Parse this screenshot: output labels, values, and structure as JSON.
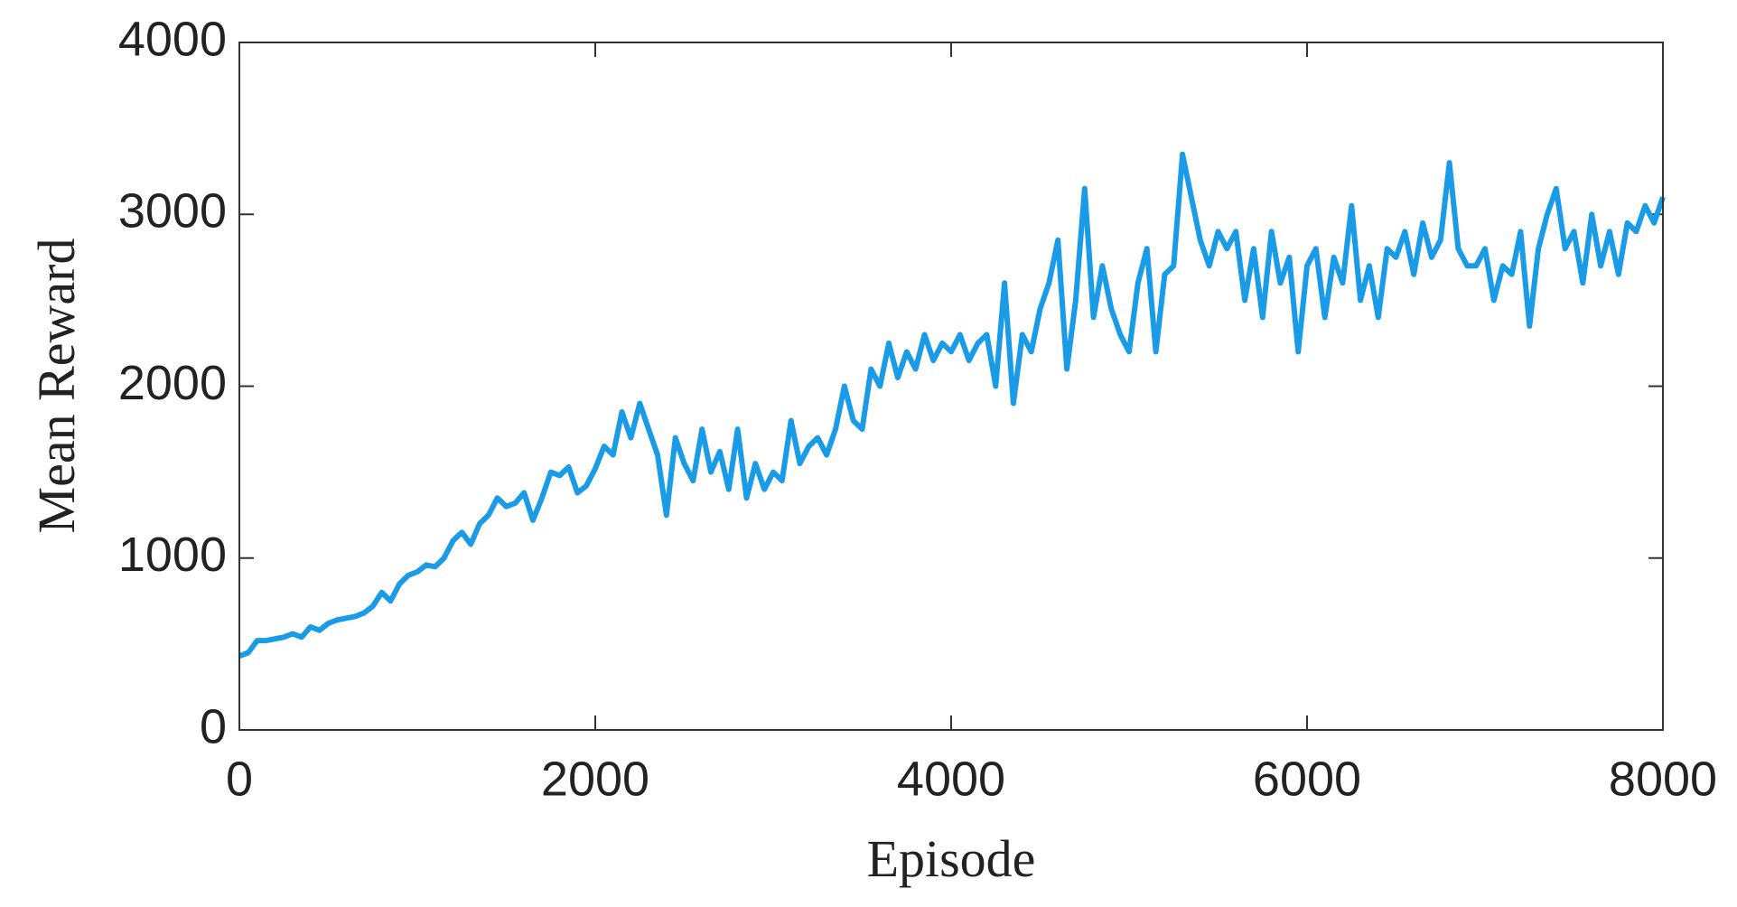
{
  "chart_data": {
    "type": "line",
    "xlabel": "Episode",
    "ylabel": "Mean Reward",
    "xlim": [
      0,
      8000
    ],
    "ylim": [
      0,
      4000
    ],
    "xticks": [
      0,
      2000,
      4000,
      6000,
      8000
    ],
    "yticks": [
      0,
      1000,
      2000,
      3000,
      4000
    ],
    "grid": false,
    "series": [
      {
        "color": "#1a9be8",
        "x": [
          0,
          50,
          100,
          150,
          200,
          250,
          300,
          350,
          400,
          450,
          500,
          550,
          600,
          650,
          700,
          750,
          800,
          850,
          900,
          950,
          1000,
          1050,
          1100,
          1150,
          1200,
          1250,
          1300,
          1350,
          1400,
          1450,
          1500,
          1550,
          1600,
          1650,
          1700,
          1750,
          1800,
          1850,
          1900,
          1950,
          2000,
          2050,
          2100,
          2150,
          2200,
          2250,
          2300,
          2350,
          2400,
          2450,
          2500,
          2550,
          2600,
          2650,
          2700,
          2750,
          2800,
          2850,
          2900,
          2950,
          3000,
          3050,
          3100,
          3150,
          3200,
          3250,
          3300,
          3350,
          3400,
          3450,
          3500,
          3550,
          3600,
          3650,
          3700,
          3750,
          3800,
          3850,
          3900,
          3950,
          4000,
          4050,
          4100,
          4150,
          4200,
          4250,
          4300,
          4350,
          4400,
          4450,
          4500,
          4550,
          4600,
          4650,
          4700,
          4750,
          4800,
          4850,
          4900,
          4950,
          5000,
          5050,
          5100,
          5150,
          5200,
          5250,
          5300,
          5350,
          5400,
          5450,
          5500,
          5550,
          5600,
          5650,
          5700,
          5750,
          5800,
          5850,
          5900,
          5950,
          6000,
          6050,
          6100,
          6150,
          6200,
          6250,
          6300,
          6350,
          6400,
          6450,
          6500,
          6550,
          6600,
          6650,
          6700,
          6750,
          6800,
          6850,
          6900,
          6950,
          7000,
          7050,
          7100,
          7150,
          7200,
          7250,
          7300,
          7350,
          7400,
          7450,
          7500,
          7550,
          7600,
          7650,
          7700,
          7750,
          7800,
          7850,
          7900,
          7950,
          8000
        ],
        "values": [
          430,
          450,
          520,
          520,
          530,
          540,
          560,
          540,
          600,
          580,
          620,
          640,
          650,
          660,
          680,
          720,
          800,
          750,
          850,
          900,
          920,
          960,
          950,
          1000,
          1100,
          1150,
          1080,
          1200,
          1250,
          1350,
          1300,
          1320,
          1380,
          1220,
          1350,
          1500,
          1480,
          1530,
          1380,
          1420,
          1520,
          1650,
          1600,
          1850,
          1700,
          1900,
          1750,
          1600,
          1250,
          1700,
          1550,
          1450,
          1750,
          1500,
          1620,
          1400,
          1750,
          1350,
          1550,
          1400,
          1500,
          1450,
          1800,
          1550,
          1650,
          1700,
          1600,
          1750,
          2000,
          1800,
          1750,
          2100,
          2000,
          2250,
          2050,
          2200,
          2100,
          2300,
          2150,
          2250,
          2200,
          2300,
          2150,
          2250,
          2300,
          2000,
          2600,
          1900,
          2300,
          2200,
          2450,
          2600,
          2850,
          2100,
          2500,
          3150,
          2400,
          2700,
          2450,
          2300,
          2200,
          2600,
          2800,
          2200,
          2650,
          2700,
          3350,
          3100,
          2850,
          2700,
          2900,
          2800,
          2900,
          2500,
          2800,
          2400,
          2900,
          2600,
          2750,
          2200,
          2700,
          2800,
          2400,
          2750,
          2600,
          3050,
          2500,
          2700,
          2400,
          2800,
          2750,
          2900,
          2650,
          2950,
          2750,
          2850,
          3300,
          2800,
          2700,
          2700,
          2800,
          2500,
          2700,
          2650,
          2900,
          2350,
          2800,
          3000,
          3150,
          2800,
          2900,
          2600,
          3000,
          2700,
          2900,
          2650,
          2950,
          2900,
          3050,
          2950,
          3100
        ]
      }
    ]
  }
}
